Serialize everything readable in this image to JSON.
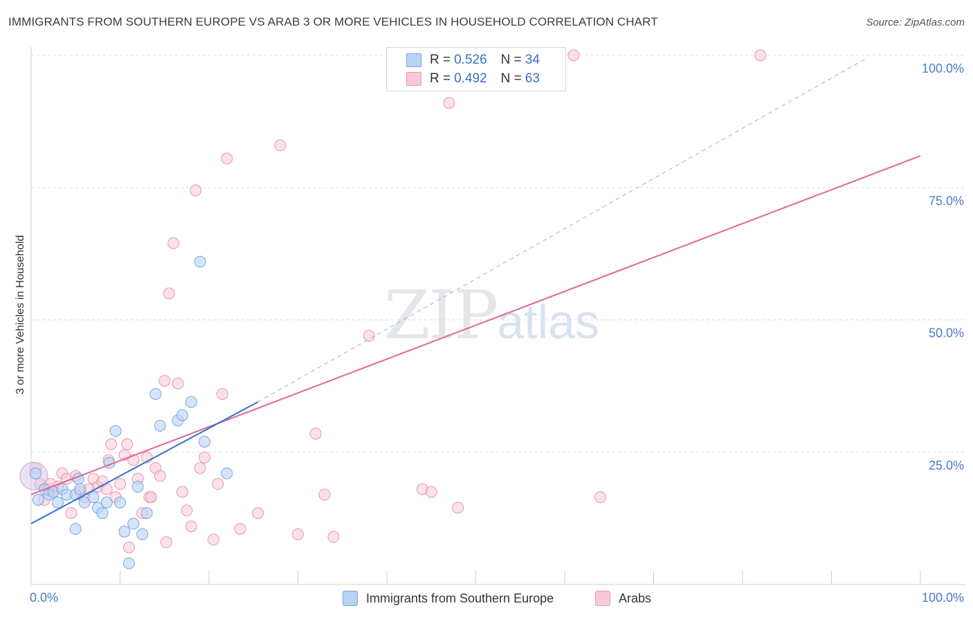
{
  "header": {
    "title": "IMMIGRANTS FROM SOUTHERN EUROPE VS ARAB 3 OR MORE VEHICLES IN HOUSEHOLD CORRELATION CHART",
    "source": "Source: ZipAtlas.com"
  },
  "watermark": {
    "zip": "ZIP",
    "atlas": "atlas"
  },
  "legend": {
    "rows": [
      {
        "r_label": "R = ",
        "r_value": "0.526",
        "n_label": "N = ",
        "n_value": "34"
      },
      {
        "r_label": "R = ",
        "r_value": "0.492",
        "n_label": "N = ",
        "n_value": "63"
      }
    ]
  },
  "colors": {
    "blue_fill": "#b8d3f5",
    "blue_stroke": "#7aa4e0",
    "blue_line": "#2f6fd0",
    "pink_fill": "#f8c8d6",
    "pink_stroke": "#e895b0",
    "pink_line": "#e0678f",
    "grid": "#dcdcdc",
    "tick_text": "#4a7cc9"
  },
  "chart_data": {
    "type": "scatter",
    "title": "IMMIGRANTS FROM SOUTHERN EUROPE VS ARAB 3 OR MORE VEHICLES IN HOUSEHOLD CORRELATION CHART",
    "xlabel": "",
    "ylabel": "3 or more Vehicles in Household",
    "xlim": [
      0,
      100
    ],
    "ylim": [
      0,
      100
    ],
    "x_ticks": [
      "0.0%",
      "100.0%"
    ],
    "y_ticks": [
      {
        "value": 25,
        "label": "25.0%"
      },
      {
        "value": 50,
        "label": "50.0%"
      },
      {
        "value": 75,
        "label": "75.0%"
      },
      {
        "value": 100,
        "label": "100.0%"
      }
    ],
    "grid": true,
    "legend_position": "top-center",
    "series": [
      {
        "name": "Immigrants from Southern Europe",
        "color": "#b8d3f5",
        "points": [
          [
            0.5,
            21
          ],
          [
            0.8,
            16
          ],
          [
            1.5,
            18
          ],
          [
            2,
            17
          ],
          [
            2.5,
            17.5
          ],
          [
            3,
            15.5
          ],
          [
            3.5,
            18
          ],
          [
            4,
            17
          ],
          [
            5,
            17
          ],
          [
            5.3,
            20
          ],
          [
            5.5,
            18
          ],
          [
            6,
            15.5
          ],
          [
            7,
            16.5
          ],
          [
            7.5,
            14.5
          ],
          [
            8,
            13.5
          ],
          [
            8.5,
            15.5
          ],
          [
            8.8,
            23
          ],
          [
            9.5,
            29
          ],
          [
            10,
            15.5
          ],
          [
            10.5,
            10
          ],
          [
            11,
            4
          ],
          [
            11.5,
            11.5
          ],
          [
            12,
            18.5
          ],
          [
            12.5,
            9.5
          ],
          [
            13,
            13.5
          ],
          [
            14,
            36
          ],
          [
            14.5,
            30
          ],
          [
            16.5,
            31
          ],
          [
            17,
            32
          ],
          [
            18,
            34.5
          ],
          [
            19,
            61
          ],
          [
            19.5,
            27
          ],
          [
            22,
            21
          ],
          [
            5,
            10.5
          ]
        ],
        "big_point": [
          0.3,
          20.5
        ]
      },
      {
        "name": "Arabs",
        "color": "#f8c8d6",
        "points": [
          [
            0.5,
            22
          ],
          [
            1,
            19
          ],
          [
            1.5,
            16
          ],
          [
            2,
            18
          ],
          [
            2.2,
            19
          ],
          [
            2.5,
            17.5
          ],
          [
            3,
            18.5
          ],
          [
            3.5,
            21
          ],
          [
            4,
            20
          ],
          [
            4.5,
            13.5
          ],
          [
            5,
            20.5
          ],
          [
            5.5,
            17.5
          ],
          [
            6,
            16.5
          ],
          [
            6.5,
            18
          ],
          [
            7,
            20
          ],
          [
            7.5,
            18.5
          ],
          [
            8,
            19.5
          ],
          [
            8.5,
            18
          ],
          [
            8.7,
            23.5
          ],
          [
            9,
            26.5
          ],
          [
            9.5,
            16.5
          ],
          [
            10,
            19
          ],
          [
            10.5,
            24.5
          ],
          [
            10.8,
            26.5
          ],
          [
            11,
            7
          ],
          [
            11.5,
            23.5
          ],
          [
            12,
            20
          ],
          [
            12.5,
            13.5
          ],
          [
            13,
            24
          ],
          [
            13.3,
            16.5
          ],
          [
            13.5,
            16.5
          ],
          [
            14,
            22
          ],
          [
            14.5,
            20.5
          ],
          [
            15,
            38.5
          ],
          [
            15.2,
            8
          ],
          [
            15.5,
            55
          ],
          [
            16,
            64.5
          ],
          [
            16.5,
            38
          ],
          [
            17,
            17.5
          ],
          [
            17.5,
            14
          ],
          [
            18,
            11
          ],
          [
            18.5,
            74.5
          ],
          [
            19,
            22
          ],
          [
            19.5,
            24
          ],
          [
            20.5,
            8.5
          ],
          [
            21,
            19
          ],
          [
            21.5,
            36
          ],
          [
            22,
            80.5
          ],
          [
            23.5,
            10.5
          ],
          [
            25.5,
            13.5
          ],
          [
            28,
            83
          ],
          [
            30,
            9.5
          ],
          [
            32,
            28.5
          ],
          [
            33,
            17
          ],
          [
            34,
            9
          ],
          [
            38,
            47
          ],
          [
            44,
            18
          ],
          [
            45,
            17.5
          ],
          [
            47,
            91
          ],
          [
            48,
            14.5
          ],
          [
            61,
            100
          ],
          [
            64,
            16.5
          ],
          [
            82,
            100
          ]
        ]
      }
    ],
    "trend_lines": [
      {
        "series": "Immigrants from Southern Europe",
        "x": [
          0,
          25.5
        ],
        "y": [
          11.5,
          34.5
        ],
        "extension": {
          "x": [
            25.5,
            94
          ],
          "y": [
            34.5,
            99.5
          ]
        }
      },
      {
        "series": "Arabs",
        "x": [
          0,
          100
        ],
        "y": [
          17,
          81
        ]
      }
    ]
  },
  "bottom_legend": {
    "items": [
      {
        "label": "Immigrants from Southern Europe"
      },
      {
        "label": "Arabs"
      }
    ]
  }
}
